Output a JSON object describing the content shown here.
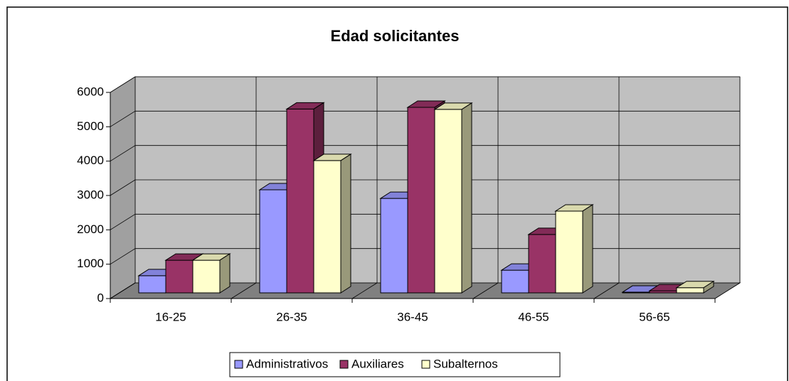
{
  "chart_data": {
    "type": "bar3d",
    "title": "Edad solicitantes",
    "categories": [
      "16-25",
      "26-35",
      "36-45",
      "46-55",
      "56-65"
    ],
    "series": [
      {
        "name": "Administrativos",
        "color": "#9999ff",
        "values": [
          500,
          3000,
          2750,
          660,
          20
        ]
      },
      {
        "name": "Auxiliares",
        "color": "#993366",
        "values": [
          950,
          5350,
          5400,
          1700,
          60
        ]
      },
      {
        "name": "Subalternos",
        "color": "#ffffcc",
        "values": [
          950,
          3850,
          5340,
          2380,
          150
        ]
      }
    ],
    "ylim": [
      0,
      6000
    ],
    "yticks": [
      0,
      1000,
      2000,
      3000,
      4000,
      5000,
      6000
    ],
    "grid": true,
    "legend": "bottom"
  }
}
